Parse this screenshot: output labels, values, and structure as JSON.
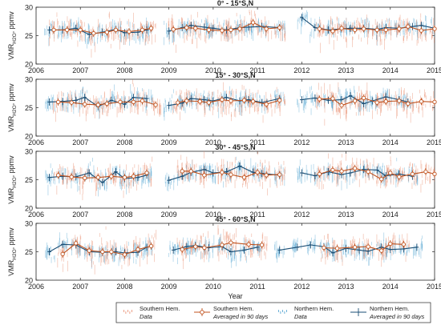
{
  "figure": {
    "xlabel": "Year",
    "legend": {
      "entries": [
        {
          "name": "Southern Hem.",
          "sub": "Data",
          "kind": "dots",
          "color": "#e8896a"
        },
        {
          "name": "Southern Hem.",
          "sub": "Averaged in 90 days",
          "kind": "circle-line",
          "color": "#c0531f"
        },
        {
          "name": "Northern Hem.",
          "sub": "Data",
          "kind": "dots",
          "color": "#4a9fcf"
        },
        {
          "name": "Northern Hem.",
          "sub": "Averaged in 90 days",
          "kind": "cross-line",
          "color": "#1a4e75"
        }
      ]
    }
  },
  "colors": {
    "south_data": "#e8896a",
    "north_data": "#4a9fcf",
    "south_avg": "#c0531f",
    "north_avg": "#1a4e75"
  },
  "chart_data": [
    {
      "type": "scatter",
      "title": "0° - 15°S,N",
      "ylabel": "VMR_H2O, ppmv",
      "ylim": [
        20,
        30
      ],
      "yticks": [
        20,
        25,
        30
      ],
      "xlim": [
        2006,
        2015
      ],
      "xticks": [
        "2006",
        "2007",
        "2008",
        "2009",
        "2010",
        "2011",
        "2012",
        "2013",
        "2014",
        "2015"
      ],
      "grid": false,
      "series": [
        {
          "name": "Southern Hem. Averaged in 90 days",
          "x": [
            2006.4,
            2006.7,
            2007.0,
            2007.3,
            2007.6,
            2007.8,
            2008.1,
            2008.4,
            2008.6,
            2009.1,
            2009.4,
            2009.6,
            2009.9,
            2010.2,
            2010.4,
            2010.6,
            2010.9,
            2011.2,
            2011.5,
            2012.4,
            2012.7,
            2012.9,
            2013.2,
            2013.4,
            2013.7,
            2013.9,
            2014.2,
            2014.4,
            2014.7,
            2015.0
          ],
          "y": [
            26,
            26,
            26,
            25.4,
            25.6,
            26,
            25.7,
            26,
            26.3,
            26.1,
            26.4,
            26.3,
            26,
            25.9,
            26,
            26.2,
            27.3,
            26.2,
            26.4,
            26.2,
            25.8,
            26.3,
            26,
            26.2,
            26,
            26,
            26.2,
            26.6,
            25.9,
            26.2
          ]
        },
        {
          "name": "Northern Hem. Averaged in 90 days",
          "x": [
            2006.3,
            2006.6,
            2006.9,
            2007.2,
            2007.5,
            2007.8,
            2008.0,
            2008.3,
            2008.5,
            2009.0,
            2009.3,
            2009.5,
            2009.8,
            2010.0,
            2010.3,
            2010.6,
            2010.8,
            2011.1,
            2011.5,
            2012.0,
            2012.3,
            2012.6,
            2012.9,
            2013.1,
            2013.4,
            2013.7,
            2013.9,
            2014.2,
            2014.5,
            2014.7,
            2015.0
          ],
          "y": [
            26,
            26,
            26.3,
            25.2,
            25.6,
            26.1,
            25.5,
            25.6,
            26,
            25.8,
            26.4,
            26.8,
            26.5,
            26.3,
            26,
            26.4,
            26.5,
            26.6,
            26.4,
            28.2,
            26.4,
            26,
            26.2,
            26.3,
            26.3,
            26.1,
            26.4,
            26.3,
            26.6,
            26.8,
            26.3
          ]
        }
      ]
    },
    {
      "type": "scatter",
      "title": "15° - 30°S,N",
      "ylabel": "VMR_H2O, ppmv",
      "ylim": [
        20,
        30
      ],
      "yticks": [
        20,
        25,
        30
      ],
      "xlim": [
        2006,
        2015
      ],
      "xticks": [
        "2006",
        "2007",
        "2008",
        "2009",
        "2010",
        "2011",
        "2012",
        "2013",
        "2014",
        "2015"
      ],
      "grid": false,
      "series": [
        {
          "name": "Southern Hem. Averaged in 90 days",
          "x": [
            2006.5,
            2006.8,
            2007.1,
            2007.4,
            2007.6,
            2007.9,
            2008.2,
            2008.4,
            2008.7,
            2009.2,
            2009.4,
            2009.7,
            2009.9,
            2010.2,
            2010.4,
            2010.7,
            2010.9,
            2011.2,
            2011.5,
            2012.4,
            2012.7,
            2012.9,
            2013.2,
            2013.4,
            2013.7,
            2013.9,
            2014.2,
            2014.4,
            2014.7,
            2015.0
          ],
          "y": [
            26,
            25.9,
            25.6,
            25.5,
            25.7,
            26,
            26,
            26.2,
            25.5,
            25.9,
            26.2,
            26.1,
            25.9,
            26.4,
            26.2,
            26.3,
            26.1,
            25.6,
            26.3,
            26.5,
            26.6,
            25.4,
            26.2,
            26.7,
            25.9,
            26.1,
            26.2,
            25.7,
            26.1,
            26
          ]
        },
        {
          "name": "Northern Hem. Averaged in 90 days",
          "x": [
            2006.3,
            2006.6,
            2006.9,
            2007.1,
            2007.4,
            2007.7,
            2008.0,
            2008.2,
            2008.5,
            2009.0,
            2009.3,
            2009.5,
            2009.8,
            2010.0,
            2010.3,
            2010.6,
            2010.8,
            2011.1,
            2011.5,
            2012.0,
            2012.3,
            2012.6,
            2012.9,
            2013.1,
            2013.4,
            2013.6,
            2013.9,
            2014.2,
            2014.4
          ],
          "y": [
            26,
            26.1,
            26.3,
            26.8,
            25.2,
            26.3,
            25.6,
            26.8,
            26.6,
            25.4,
            25.8,
            26.6,
            26.4,
            26.2,
            26.8,
            26.2,
            26.4,
            25.9,
            26.6,
            26.4,
            26.7,
            26.3,
            26.4,
            27.1,
            25.7,
            26.2,
            26.9,
            26.4,
            26
          ]
        }
      ]
    },
    {
      "type": "scatter",
      "title": "30° - 45°S,N",
      "ylabel": "VMR_H2O, ppmv",
      "ylim": [
        20,
        30
      ],
      "yticks": [
        20,
        25,
        30
      ],
      "xlim": [
        2006,
        2015
      ],
      "xticks": [
        "2006",
        "2007",
        "2008",
        "2009",
        "2010",
        "2011",
        "2012",
        "2013",
        "2014",
        "2015"
      ],
      "grid": false,
      "series": [
        {
          "name": "Southern Hem. Averaged in 90 days",
          "x": [
            2006.5,
            2006.8,
            2007.1,
            2007.4,
            2007.7,
            2008.0,
            2008.2,
            2008.5,
            2009.3,
            2009.5,
            2009.8,
            2010.2,
            2010.4,
            2010.7,
            2011.0,
            2011.2,
            2011.5,
            2012.4,
            2012.7,
            2012.9,
            2013.2,
            2013.5,
            2013.8,
            2014.0,
            2014.2,
            2014.5,
            2014.8,
            2015.0
          ],
          "y": [
            25.8,
            25.5,
            25.3,
            25.4,
            25.6,
            25.4,
            25.6,
            26.2,
            26.5,
            26.5,
            25.8,
            26.3,
            25.9,
            25.4,
            26.3,
            25.8,
            25.9,
            26,
            26.7,
            26.5,
            27,
            26.4,
            25.1,
            26.2,
            25.5,
            26,
            26.4,
            26
          ]
        },
        {
          "name": "Northern Hem. Averaged in 90 days",
          "x": [
            2006.3,
            2006.6,
            2006.9,
            2007.2,
            2007.5,
            2007.8,
            2008.0,
            2008.3,
            2008.5,
            2009.0,
            2009.3,
            2009.5,
            2009.8,
            2010.0,
            2010.3,
            2010.6,
            2010.9,
            2011.1,
            2011.5,
            2012.0,
            2012.3,
            2012.6,
            2012.9,
            2013.1,
            2013.4,
            2013.7,
            2013.9,
            2014.2,
            2014.5
          ],
          "y": [
            25.4,
            25.6,
            25.5,
            26.2,
            24.5,
            26.4,
            25.2,
            25.4,
            25.8,
            24.9,
            25.6,
            26.3,
            26.8,
            26.2,
            26.4,
            27.4,
            26.3,
            26.1,
            25.8,
            26.2,
            25.7,
            26.4,
            25.9,
            26.2,
            26.8,
            26.7,
            25.7,
            26,
            25.6
          ]
        }
      ]
    },
    {
      "type": "scatter",
      "title": "45° - 60°S,N",
      "ylabel": "VMR_H2O, ppmv",
      "ylim": [
        20,
        30
      ],
      "yticks": [
        20,
        25,
        30
      ],
      "xlim": [
        2006,
        2015
      ],
      "xticks": [
        "2006",
        "2007",
        "2008",
        "2009",
        "2010",
        "2011",
        "2012",
        "2013",
        "2014",
        "2015"
      ],
      "grid": false,
      "series": [
        {
          "name": "Southern Hem. Averaged in 90 days",
          "x": [
            2006.6,
            2006.9,
            2007.2,
            2007.5,
            2007.7,
            2008.0,
            2008.3,
            2008.6,
            2009.3,
            2009.6,
            2009.8,
            2010.2,
            2010.4,
            2010.8,
            2011.1,
            2012.5,
            2012.8,
            2013.2,
            2013.5,
            2013.8,
            2014.0,
            2014.3
          ],
          "y": [
            24.6,
            26.5,
            25.2,
            25,
            25,
            24.5,
            25.4,
            26,
            25.4,
            25.9,
            25.7,
            26.2,
            26.6,
            26.3,
            26.2,
            25.7,
            25.6,
            25.8,
            25.9,
            25.2,
            26.4,
            26.3
          ]
        },
        {
          "name": "Northern Hem. Averaged in 90 days",
          "x": [
            2006.3,
            2006.6,
            2006.9,
            2007.2,
            2007.5,
            2007.8,
            2008.0,
            2008.3,
            2008.5,
            2009.1,
            2009.4,
            2009.6,
            2009.9,
            2010.2,
            2010.4,
            2010.7,
            2011.0,
            2011.5,
            2011.9,
            2012.2,
            2012.5,
            2012.7,
            2013.0,
            2013.3,
            2013.5,
            2013.8,
            2014.0,
            2014.3,
            2014.6
          ],
          "y": [
            25,
            26.3,
            26.2,
            25,
            24.9,
            25,
            24.8,
            24.9,
            25.8,
            25.3,
            25.9,
            26.1,
            25.7,
            25.9,
            25,
            25.3,
            25.8,
            25.3,
            25.8,
            26.2,
            25.9,
            24.8,
            25.6,
            25.3,
            25.1,
            25.8,
            25.4,
            25.5,
            25.8
          ]
        }
      ]
    }
  ]
}
